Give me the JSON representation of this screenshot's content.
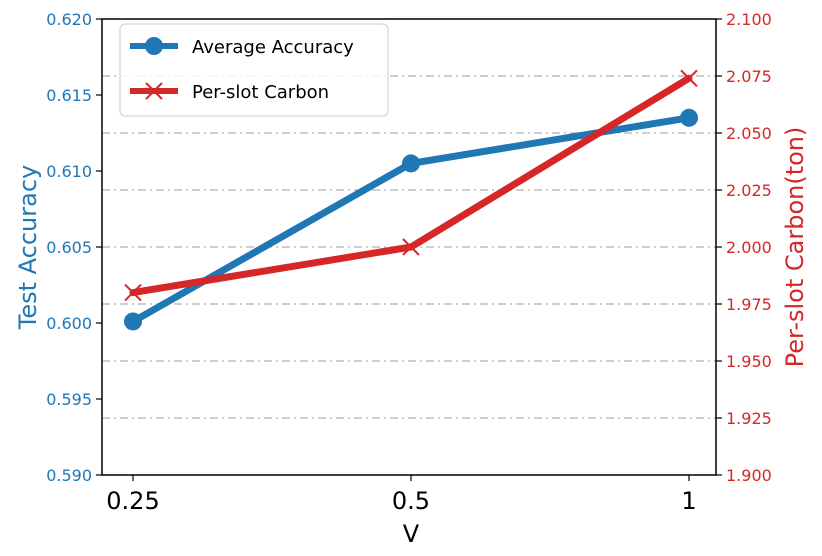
{
  "chart_data": {
    "type": "line",
    "categories": [
      "0.25",
      "0.5",
      "1"
    ],
    "xlabel": "V",
    "y_left": {
      "label": "Test Accuracy",
      "range": [
        0.59,
        0.62
      ],
      "ticks": [
        "0.590",
        "0.595",
        "0.600",
        "0.605",
        "0.610",
        "0.615",
        "0.620"
      ],
      "tick_values": [
        0.59,
        0.595,
        0.6,
        0.605,
        0.61,
        0.615,
        0.62
      ],
      "color": "#1f77b4"
    },
    "y_right": {
      "label": "Per-slot Carbon(ton)",
      "range": [
        1.9,
        2.1
      ],
      "ticks": [
        "1.900",
        "1.925",
        "1.950",
        "1.975",
        "2.000",
        "2.025",
        "2.050",
        "2.075",
        "2.100"
      ],
      "tick_values": [
        1.9,
        1.925,
        1.95,
        1.975,
        2.0,
        2.025,
        2.05,
        2.075,
        2.1
      ],
      "color": "#d62728"
    },
    "series": [
      {
        "name": "Average Accuracy",
        "axis": "left",
        "marker": "circle",
        "color": "#1f77b4",
        "values": [
          0.6001,
          0.6105,
          0.6135
        ]
      },
      {
        "name": "Per-slot Carbon",
        "axis": "right",
        "marker": "x",
        "color": "#d62728",
        "values": [
          1.98,
          2.0,
          2.074
        ]
      }
    ],
    "grid": "horizontal dash-dot at right-axis ticks",
    "legend": "top-left"
  }
}
